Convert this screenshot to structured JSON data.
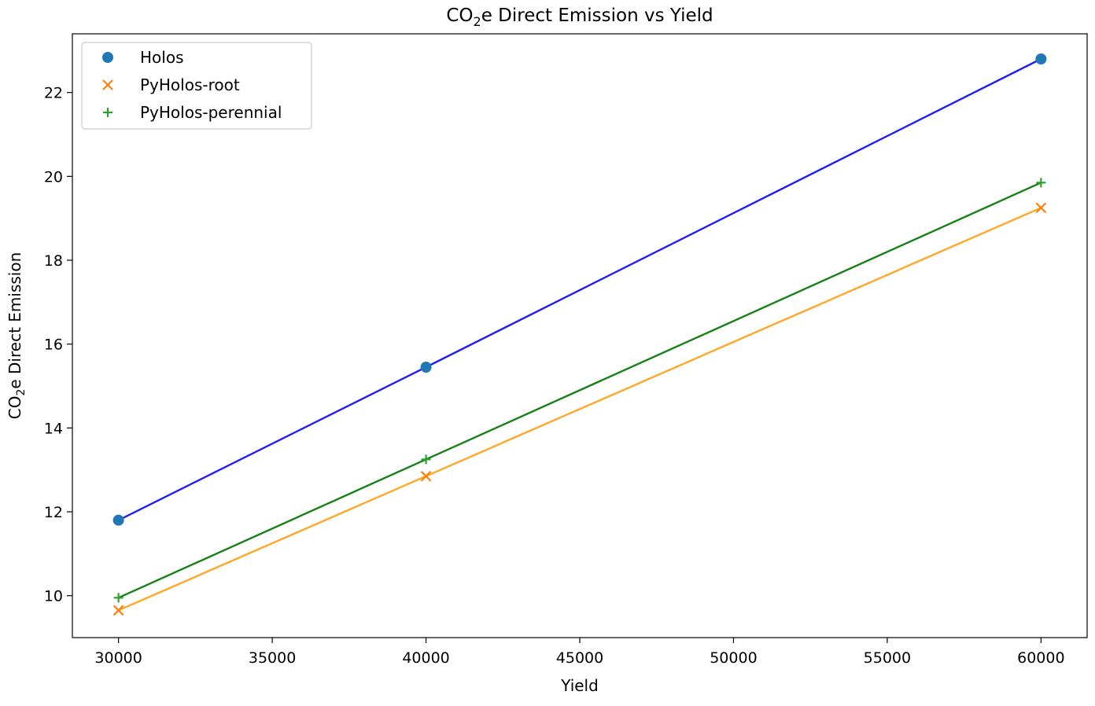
{
  "chart_data": {
    "type": "scatter",
    "title": {
      "prefix": "CO",
      "sub": "2",
      "suffix": "e Direct Emission vs Yield"
    },
    "xlabel": "Yield",
    "ylabel": {
      "prefix": "CO",
      "sub": "2",
      "suffix": "e Direct Emission"
    },
    "xlim": [
      28500,
      61500
    ],
    "ylim": [
      9.0,
      23.4
    ],
    "xticks": [
      30000,
      35000,
      40000,
      45000,
      50000,
      55000,
      60000
    ],
    "yticks": [
      10,
      12,
      14,
      16,
      18,
      20,
      22
    ],
    "grid": false,
    "legend_position": "top-left",
    "series": [
      {
        "name": "Holos",
        "marker": "circle",
        "marker_color": "#1f77b4",
        "line_color": "#1f1ff5",
        "x": [
          30000,
          40000,
          60000
        ],
        "y": [
          11.8,
          15.45,
          22.8
        ]
      },
      {
        "name": "PyHolos-root",
        "marker": "x",
        "marker_color": "#ff7f0e",
        "line_color": "#ffa726",
        "x": [
          30000,
          40000,
          60000
        ],
        "y": [
          9.65,
          12.85,
          19.25
        ]
      },
      {
        "name": "PyHolos-perennial",
        "marker": "plus",
        "marker_color": "#2ca02c",
        "line_color": "#178017",
        "x": [
          30000,
          40000,
          60000
        ],
        "y": [
          9.95,
          13.25,
          19.85
        ]
      }
    ]
  }
}
